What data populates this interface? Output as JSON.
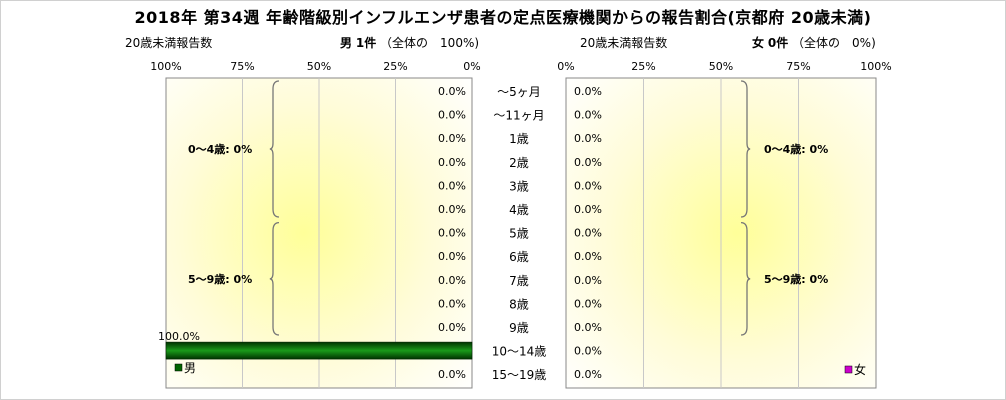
{
  "title": "2018年 第34週 年齢階級別インフルエンザ患者の定点医療機関からの報告割合(京都府 20歳未満)",
  "left_header": {
    "caption": "20歳未満報告数",
    "sex": "男",
    "count": "1",
    "unit": "件",
    "total_note": "（全体の　100%)"
  },
  "right_header": {
    "caption": "20歳未満報告数",
    "sex": "女",
    "count": "0",
    "unit": "件",
    "total_note": "（全体の　0%)"
  },
  "chart_data": {
    "type": "bar",
    "orientation": "horizontal-pyramid",
    "categories": [
      "〜5ヶ月",
      "〜11ヶ月",
      "1歳",
      "2歳",
      "3歳",
      "4歳",
      "5歳",
      "6歳",
      "7歳",
      "8歳",
      "9歳",
      "10〜14歳",
      "15〜19歳"
    ],
    "series": [
      {
        "name": "男",
        "color": "#006400",
        "values": [
          0,
          0,
          0,
          0,
          0,
          0,
          0,
          0,
          0,
          0,
          0,
          100,
          0
        ],
        "labels": [
          "0.0%",
          "0.0%",
          "0.0%",
          "0.0%",
          "0.0%",
          "0.0%",
          "0.0%",
          "0.0%",
          "0.0%",
          "0.0%",
          "0.0%",
          "100.0%",
          "0.0%"
        ]
      },
      {
        "name": "女",
        "color": "#cc00cc",
        "values": [
          0,
          0,
          0,
          0,
          0,
          0,
          0,
          0,
          0,
          0,
          0,
          0,
          0
        ],
        "labels": [
          "0.0%",
          "0.0%",
          "0.0%",
          "0.0%",
          "0.0%",
          "0.0%",
          "0.0%",
          "0.0%",
          "0.0%",
          "0.0%",
          "0.0%",
          "0.0%",
          "0.0%"
        ]
      }
    ],
    "left_ticks": [
      "100%",
      "75%",
      "50%",
      "25%",
      "0%"
    ],
    "right_ticks": [
      "0%",
      "25%",
      "50%",
      "75%",
      "100%"
    ],
    "xlim": [
      0,
      100
    ],
    "brackets": [
      {
        "label": "0〜4歳: 0%",
        "from": 0,
        "to": 5
      },
      {
        "label": "5〜9歳: 0%",
        "from": 6,
        "to": 10
      }
    ],
    "grid": true,
    "background": "yellow radial gradient"
  }
}
